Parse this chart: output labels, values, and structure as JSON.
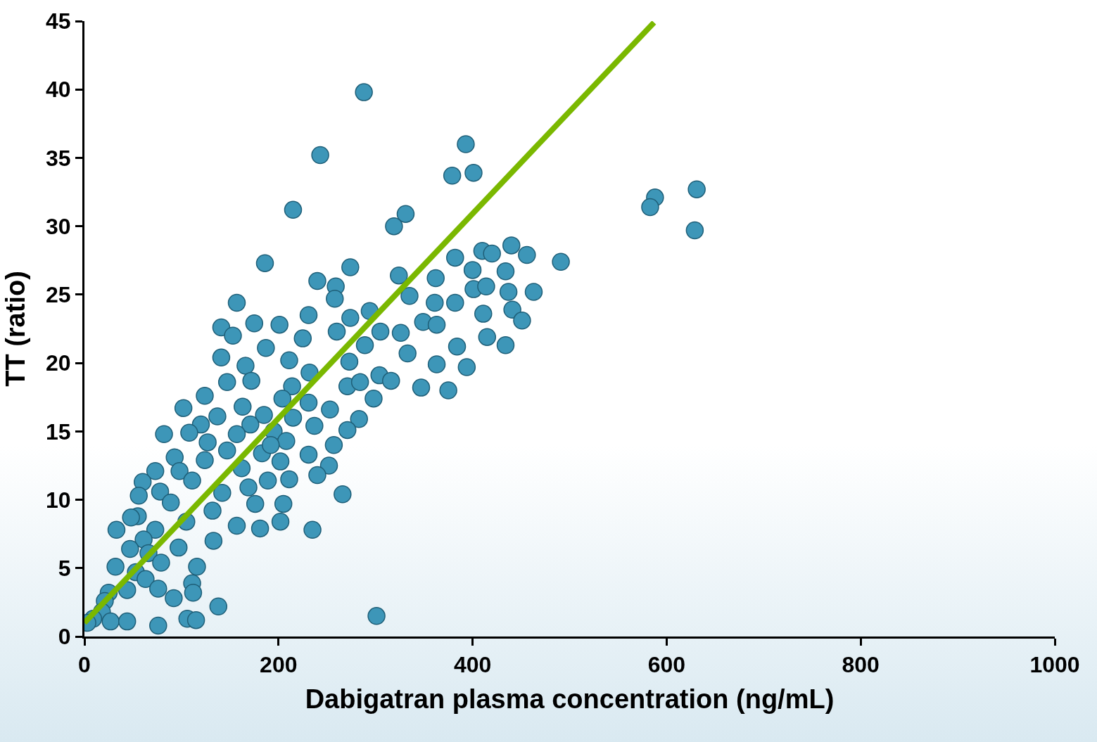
{
  "chart_data": {
    "type": "scatter",
    "xlabel": "Dabigatran plasma concentration (ng/mL)",
    "ylabel": "TT (ratio)",
    "xlim": [
      0,
      1000
    ],
    "xticks": [
      0,
      200,
      400,
      600,
      800,
      1000
    ],
    "ylim": [
      0,
      45
    ],
    "yticks": [
      0,
      5,
      10,
      15,
      20,
      25,
      30,
      35,
      40,
      45
    ],
    "series": [
      {
        "type": "scatter",
        "marker": "circle",
        "color": "#3d96b8",
        "x": [
          288,
          243,
          393,
          401,
          379,
          215,
          331,
          319,
          588,
          583,
          631,
          629,
          186,
          274,
          491,
          440,
          456,
          410,
          420,
          382,
          324,
          362,
          240,
          259,
          400,
          434,
          463,
          437,
          401,
          414,
          157,
          258,
          335,
          361,
          382,
          294,
          231,
          411,
          441,
          451,
          141,
          175,
          201,
          274,
          349,
          363,
          153,
          225,
          260,
          305,
          415,
          434,
          384,
          187,
          289,
          333,
          141,
          211,
          166,
          273,
          363,
          394,
          232,
          304,
          172,
          147,
          214,
          271,
          316,
          347,
          375,
          124,
          204,
          231,
          298,
          102,
          163,
          253,
          137,
          185,
          215,
          283,
          120,
          171,
          237,
          82,
          108,
          157,
          195,
          271,
          127,
          208,
          257,
          93,
          147,
          183,
          231,
          124,
          202,
          252,
          73,
          98,
          162,
          240,
          60,
          111,
          189,
          211,
          78,
          142,
          266,
          56,
          89,
          176,
          205,
          132,
          55,
          48,
          105,
          202,
          157,
          181,
          33,
          235,
          73,
          133,
          61,
          97,
          47,
          66,
          79,
          32,
          116,
          53,
          63,
          111,
          44,
          76,
          25,
          112,
          92,
          21,
          138,
          18,
          301,
          9,
          106,
          115,
          27,
          44,
          3,
          76,
          169,
          192,
          284,
          326
        ],
        "values": [
          39.8,
          35.2,
          36,
          33.9,
          33.7,
          31.2,
          30.9,
          30,
          32.1,
          31.4,
          32.7,
          29.7,
          27.3,
          27,
          27.4,
          28.6,
          27.9,
          28.2,
          28,
          27.7,
          26.4,
          26.2,
          26,
          25.6,
          26.8,
          26.7,
          25.2,
          25.2,
          25.4,
          25.6,
          24.4,
          24.7,
          24.9,
          24.4,
          24.4,
          23.8,
          23.5,
          23.6,
          23.9,
          23.1,
          22.6,
          22.9,
          22.8,
          23.3,
          23,
          22.8,
          22,
          21.8,
          22.3,
          22.3,
          21.9,
          21.3,
          21.2,
          21.1,
          21.3,
          20.7,
          20.4,
          20.2,
          19.8,
          20.1,
          19.9,
          19.7,
          19.3,
          19.1,
          18.7,
          18.6,
          18.3,
          18.3,
          18.7,
          18.2,
          18,
          17.6,
          17.4,
          17.1,
          17.4,
          16.7,
          16.8,
          16.6,
          16.1,
          16.2,
          16,
          15.9,
          15.5,
          15.5,
          15.4,
          14.8,
          14.9,
          14.8,
          15,
          15.1,
          14.2,
          14.3,
          14,
          13.1,
          13.6,
          13.4,
          13.3,
          12.9,
          12.8,
          12.5,
          12.1,
          12.1,
          12.3,
          11.8,
          11.3,
          11.4,
          11.4,
          11.5,
          10.6,
          10.5,
          10.4,
          10.3,
          9.8,
          9.7,
          9.7,
          9.2,
          8.8,
          8.7,
          8.4,
          8.4,
          8.1,
          7.9,
          7.8,
          7.8,
          7.8,
          7,
          7.1,
          6.5,
          6.4,
          6.1,
          5.4,
          5.1,
          5.1,
          4.7,
          4.2,
          3.9,
          3.4,
          3.5,
          3.2,
          3.2,
          2.8,
          2.6,
          2.2,
          1.8,
          1.5,
          1.3,
          1.3,
          1.2,
          1.1,
          1.1,
          1,
          0.8,
          10.9,
          14,
          18.6,
          22.2
        ]
      },
      {
        "type": "line",
        "marker": "none",
        "line_style": "solid",
        "color": "#7ab800",
        "x": [
          0,
          587
        ],
        "values": [
          1,
          44.9
        ]
      }
    ]
  }
}
